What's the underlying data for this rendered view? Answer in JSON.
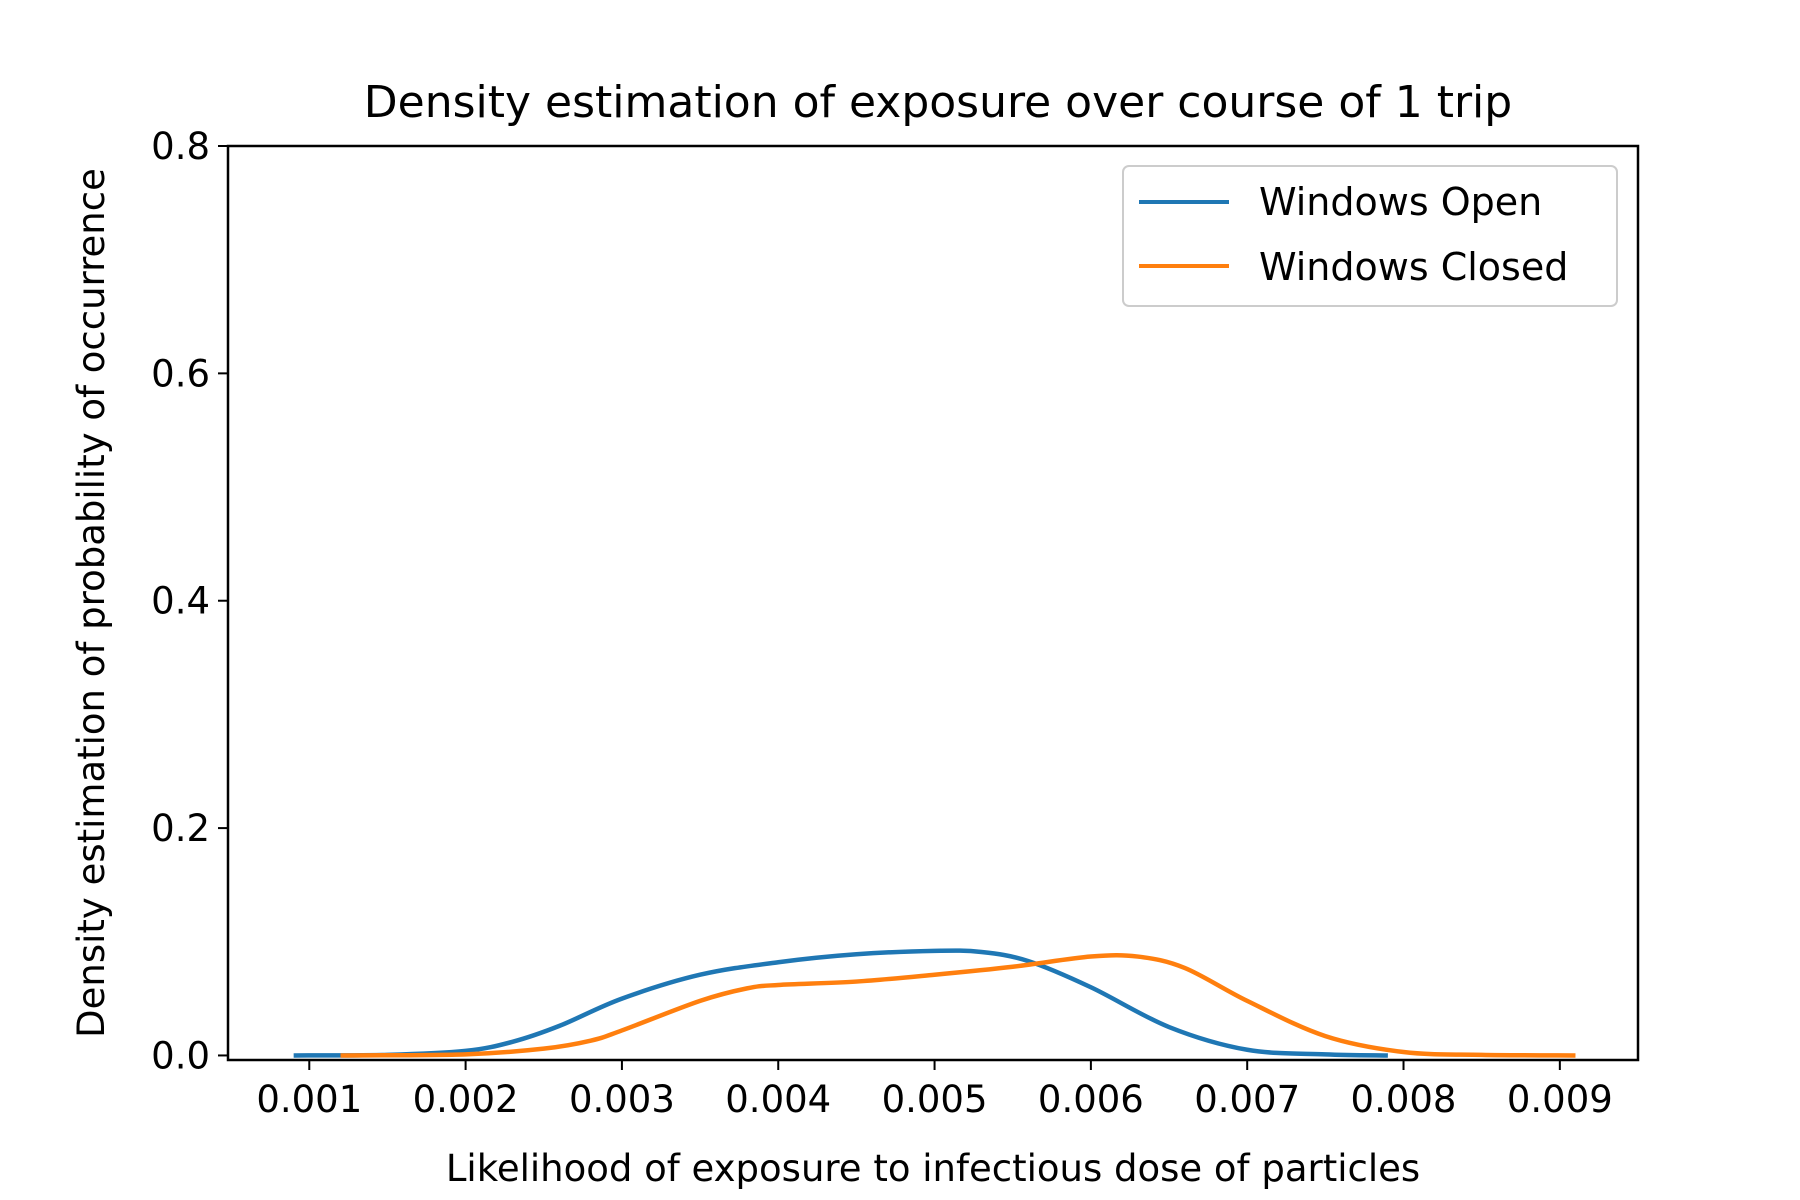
{
  "chart_data": {
    "type": "line",
    "title": "Density estimation of exposure over course of 1 trip",
    "xlabel": "Likelihood of exposure to infectious dose of particles",
    "ylabel": "Density estimation of probability of occurrence",
    "xlim": [
      0.00048,
      0.0095
    ],
    "ylim": [
      -0.004,
      0.8
    ],
    "x_ticks": [
      0.001,
      0.002,
      0.003,
      0.004,
      0.005,
      0.006,
      0.007,
      0.008,
      0.009
    ],
    "x_tick_labels": [
      "0.001",
      "0.002",
      "0.003",
      "0.004",
      "0.005",
      "0.006",
      "0.007",
      "0.008",
      "0.009"
    ],
    "y_ticks": [
      0.0,
      0.2,
      0.4,
      0.6,
      0.8
    ],
    "y_tick_labels": [
      "0.0",
      "0.2",
      "0.4",
      "0.6",
      "0.8"
    ],
    "grid": false,
    "legend_position": "top-right",
    "series": [
      {
        "name": "Windows Open",
        "color": "#1f77b4",
        "x": [
          0.0009,
          0.0015,
          0.002,
          0.0023,
          0.0026,
          0.003,
          0.0035,
          0.004,
          0.0045,
          0.005,
          0.0053,
          0.0056,
          0.006,
          0.0065,
          0.007,
          0.0075,
          0.0079
        ],
        "y": [
          0.0,
          0.0005,
          0.004,
          0.012,
          0.026,
          0.05,
          0.071,
          0.082,
          0.089,
          0.092,
          0.091,
          0.083,
          0.06,
          0.025,
          0.005,
          0.001,
          0.0
        ]
      },
      {
        "name": "Windows Closed",
        "color": "#ff7f0e",
        "x": [
          0.0012,
          0.002,
          0.0025,
          0.0028,
          0.003,
          0.0035,
          0.0038,
          0.004,
          0.0045,
          0.005,
          0.0055,
          0.006,
          0.0063,
          0.0066,
          0.007,
          0.0075,
          0.008,
          0.0085,
          0.0091
        ],
        "y": [
          0.0,
          0.001,
          0.006,
          0.013,
          0.022,
          0.048,
          0.059,
          0.062,
          0.065,
          0.071,
          0.078,
          0.087,
          0.087,
          0.077,
          0.048,
          0.017,
          0.003,
          0.0005,
          0.0
        ]
      }
    ]
  }
}
